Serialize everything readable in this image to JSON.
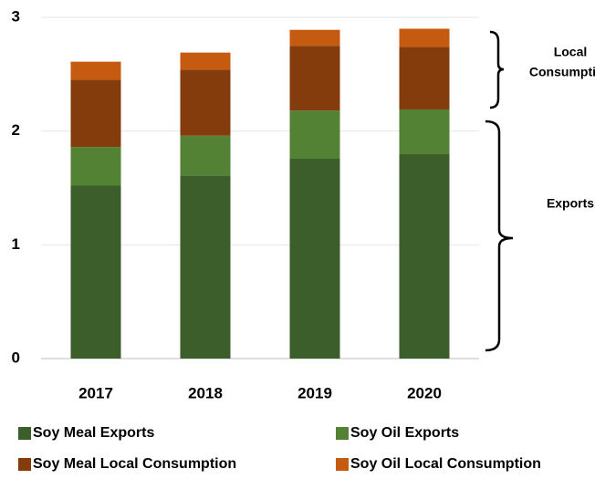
{
  "chart_data": {
    "type": "stacked_bar",
    "categories": [
      "2017",
      "2018",
      "2019",
      "2020"
    ],
    "series": [
      {
        "name": "Soy Meal Exports",
        "color": "#3b5e2b",
        "values": [
          1.52,
          1.61,
          1.76,
          1.8
        ]
      },
      {
        "name": "Soy Oil Exports",
        "color": "#548235",
        "values": [
          0.34,
          0.35,
          0.42,
          0.39
        ]
      },
      {
        "name": "Soy Meal Local Consumption",
        "color": "#843c0c",
        "values": [
          0.59,
          0.58,
          0.57,
          0.55
        ]
      },
      {
        "name": "Soy Oil Local Consumption",
        "color": "#c55a11",
        "values": [
          0.16,
          0.15,
          0.14,
          0.16
        ]
      }
    ],
    "ylim": [
      0,
      3
    ],
    "yticks": [
      0,
      1,
      2,
      3
    ],
    "grid": true,
    "annotations": [
      "Local",
      "Consumption",
      "Exports"
    ]
  }
}
